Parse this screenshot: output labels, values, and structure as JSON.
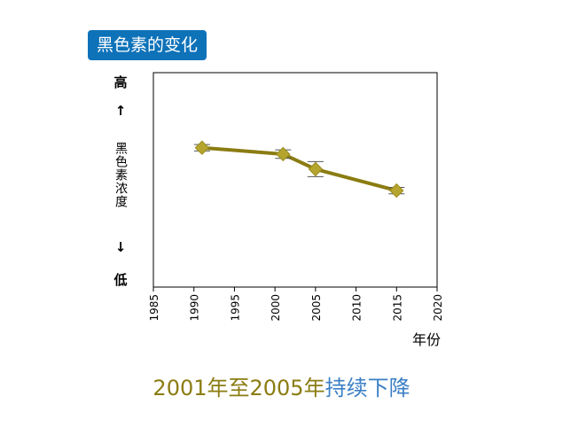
{
  "badge": {
    "text": "黑色素的变化",
    "color": "#0e72b9"
  },
  "y_axis": {
    "high": "高",
    "up_arrow": "↑",
    "label": "黑色素浓度",
    "down_arrow": "↓",
    "low": "低"
  },
  "caption": {
    "part1": "2001年至2005年",
    "part2": "持续下降",
    "color1": "#8b7c12",
    "color2": "#3b7fc4"
  },
  "chart_data": {
    "type": "line",
    "xlabel": "年份",
    "ylabel": "黑色素浓度",
    "xlim": [
      1985,
      2020
    ],
    "x_ticks": [
      "1985",
      "1990",
      "1995",
      "2000",
      "2005",
      "2010",
      "2015",
      "2020"
    ],
    "ylim": [
      0,
      10
    ],
    "y_ticks_hidden": true,
    "grid": false,
    "series": [
      {
        "color": "#8b7c12",
        "points": [
          {
            "x": 1991,
            "y": 6.5,
            "err": 0.15
          },
          {
            "x": 2001,
            "y": 6.2,
            "err": 0.2
          },
          {
            "x": 2005,
            "y": 5.5,
            "err": 0.35
          },
          {
            "x": 2015,
            "y": 4.5,
            "err": 0.15
          }
        ]
      }
    ]
  }
}
